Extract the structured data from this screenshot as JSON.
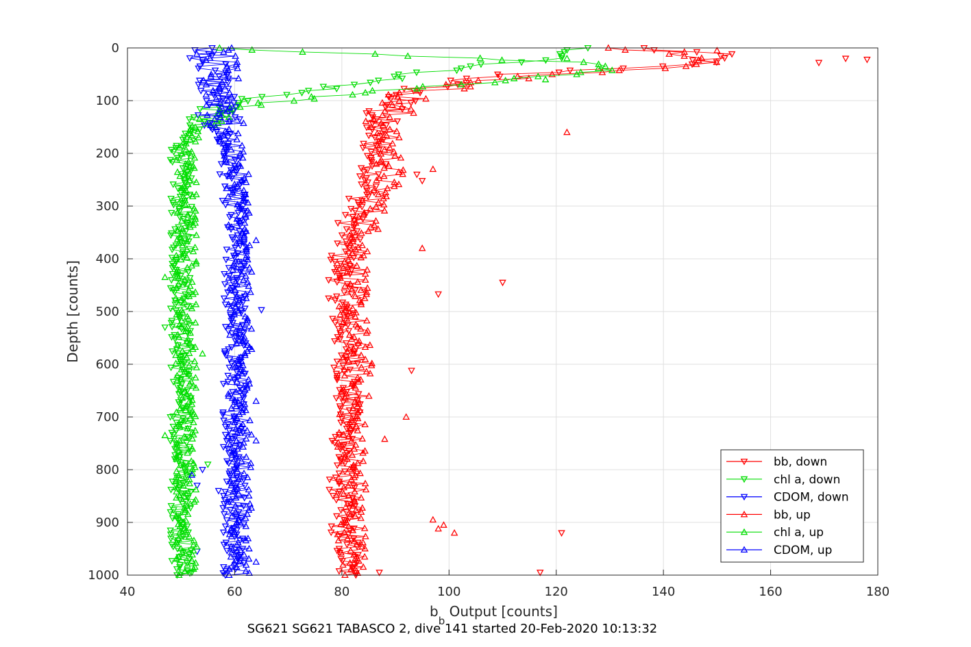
{
  "chart_data": {
    "type": "scatter",
    "title": "",
    "xlabel_main": "b",
    "xlabel_sub": "b",
    "xlabel_rest": " Output [counts]",
    "ylabel": "Depth [counts]",
    "caption": "SG621 SG621 TABASCO 2, dive 141 started 20-Feb-2020 10:13:32",
    "xlim": [
      40,
      180
    ],
    "ylim": [
      0,
      1000
    ],
    "y_reversed": true,
    "grid": true,
    "legend_position": "bottom-right",
    "xticks": [
      40,
      60,
      80,
      100,
      120,
      140,
      160,
      180
    ],
    "yticks": [
      0,
      100,
      200,
      300,
      400,
      500,
      600,
      700,
      800,
      900,
      1000
    ],
    "series": [
      {
        "name": "bb, down",
        "color": "#ff0000",
        "marker": "triangle-down",
        "profile": [
          [
            0,
            135
          ],
          [
            10,
            148
          ],
          [
            20,
            150
          ],
          [
            30,
            145
          ],
          [
            40,
            128
          ],
          [
            50,
            112
          ],
          [
            60,
            104
          ],
          [
            70,
            98
          ],
          [
            80,
            94
          ],
          [
            90,
            91
          ],
          [
            100,
            90
          ],
          [
            120,
            88
          ],
          [
            140,
            86
          ],
          [
            160,
            86
          ],
          [
            180,
            86
          ],
          [
            200,
            86
          ],
          [
            240,
            86
          ],
          [
            280,
            84
          ],
          [
            320,
            82
          ],
          [
            360,
            81
          ],
          [
            400,
            80
          ],
          [
            450,
            80
          ],
          [
            500,
            80
          ],
          [
            600,
            81
          ],
          [
            700,
            81
          ],
          [
            800,
            80
          ],
          [
            900,
            80
          ],
          [
            950,
            81
          ],
          [
            1000,
            81
          ]
        ],
        "spread": 2.5,
        "outliers": [
          [
            22,
            178
          ],
          [
            28,
            169
          ],
          [
            20,
            174
          ],
          [
            445,
            110
          ],
          [
            467,
            98
          ],
          [
            612,
            93
          ],
          [
            920,
            121
          ],
          [
            995,
            117
          ],
          [
            995,
            87
          ],
          [
            240,
            94
          ],
          [
            252,
            95
          ]
        ]
      },
      {
        "name": "chl a, down",
        "color": "#00dd00",
        "marker": "triangle-down",
        "profile": [
          [
            0,
            124
          ],
          [
            10,
            124
          ],
          [
            20,
            122
          ],
          [
            30,
            110
          ],
          [
            40,
            100
          ],
          [
            60,
            88
          ],
          [
            80,
            75
          ],
          [
            90,
            68
          ],
          [
            100,
            62
          ],
          [
            110,
            58
          ],
          [
            120,
            56
          ],
          [
            140,
            53
          ],
          [
            160,
            51
          ],
          [
            180,
            50
          ],
          [
            200,
            50
          ],
          [
            300,
            50
          ],
          [
            400,
            50
          ],
          [
            500,
            50
          ],
          [
            600,
            50
          ],
          [
            700,
            50
          ],
          [
            800,
            50
          ],
          [
            900,
            50
          ],
          [
            1000,
            50
          ]
        ],
        "spread": 2.0,
        "outliers": [
          [
            530,
            47
          ],
          [
            700,
            48
          ],
          [
            790,
            55
          ],
          [
            995,
            52
          ]
        ]
      },
      {
        "name": "CDOM, down",
        "color": "#0000ff",
        "marker": "triangle-down",
        "profile": [
          [
            0,
            55
          ],
          [
            50,
            56
          ],
          [
            100,
            57
          ],
          [
            150,
            57
          ],
          [
            200,
            59
          ],
          [
            300,
            60
          ],
          [
            400,
            60
          ],
          [
            500,
            60
          ],
          [
            600,
            60
          ],
          [
            700,
            60
          ],
          [
            800,
            60
          ],
          [
            900,
            60
          ],
          [
            1000,
            60
          ]
        ],
        "spread": 2.2,
        "outliers": [
          [
            497,
            65
          ],
          [
            800,
            54
          ],
          [
            830,
            53
          ],
          [
            955,
            53
          ],
          [
            840,
            57
          ]
        ]
      },
      {
        "name": "bb, up",
        "color": "#ff0000",
        "marker": "triangle-up",
        "profile": [
          [
            0,
            130
          ],
          [
            10,
            145
          ],
          [
            20,
            152
          ],
          [
            30,
            148
          ],
          [
            40,
            135
          ],
          [
            50,
            122
          ],
          [
            60,
            110
          ],
          [
            70,
            103
          ],
          [
            80,
            97
          ],
          [
            90,
            93
          ],
          [
            100,
            91
          ],
          [
            120,
            89
          ],
          [
            140,
            88
          ],
          [
            160,
            88
          ],
          [
            180,
            88
          ],
          [
            200,
            89
          ],
          [
            240,
            89
          ],
          [
            280,
            87
          ],
          [
            320,
            85
          ],
          [
            360,
            84
          ],
          [
            400,
            83
          ],
          [
            450,
            82
          ],
          [
            500,
            82
          ],
          [
            600,
            83
          ],
          [
            700,
            82
          ],
          [
            800,
            82
          ],
          [
            900,
            82
          ],
          [
            950,
            82
          ],
          [
            1000,
            82
          ]
        ],
        "spread": 2.8,
        "outliers": [
          [
            160,
            122
          ],
          [
            380,
            95
          ],
          [
            420,
            79
          ],
          [
            700,
            92
          ],
          [
            742,
            88
          ],
          [
            895,
            97
          ],
          [
            905,
            99
          ],
          [
            912,
            98
          ],
          [
            920,
            101
          ],
          [
            230,
            97
          ],
          [
            5,
            150
          ]
        ]
      },
      {
        "name": "chl a, up",
        "color": "#00dd00",
        "marker": "triangle-up",
        "profile": [
          [
            0,
            60
          ],
          [
            5,
            68
          ],
          [
            10,
            80
          ],
          [
            15,
            92
          ],
          [
            20,
            105
          ],
          [
            25,
            118
          ],
          [
            30,
            128
          ],
          [
            40,
            132
          ],
          [
            50,
            125
          ],
          [
            60,
            112
          ],
          [
            70,
            100
          ],
          [
            80,
            90
          ],
          [
            90,
            78
          ],
          [
            100,
            70
          ],
          [
            110,
            64
          ],
          [
            120,
            59
          ],
          [
            130,
            56
          ],
          [
            140,
            54
          ],
          [
            160,
            52
          ],
          [
            200,
            51
          ],
          [
            300,
            51
          ],
          [
            400,
            51
          ],
          [
            500,
            51
          ],
          [
            600,
            51
          ],
          [
            700,
            51
          ],
          [
            800,
            51
          ],
          [
            900,
            51
          ],
          [
            1000,
            51
          ]
        ],
        "spread": 2.0,
        "outliers": [
          [
            20,
            122
          ],
          [
            60,
            118
          ],
          [
            435,
            47
          ],
          [
            735,
            47
          ],
          [
            580,
            54
          ]
        ]
      },
      {
        "name": "CDOM, up",
        "color": "#0000ff",
        "marker": "triangle-up",
        "profile": [
          [
            0,
            56
          ],
          [
            50,
            57
          ],
          [
            100,
            58
          ],
          [
            150,
            58
          ],
          [
            200,
            60
          ],
          [
            300,
            61
          ],
          [
            400,
            61
          ],
          [
            500,
            61
          ],
          [
            600,
            61
          ],
          [
            700,
            61
          ],
          [
            800,
            61
          ],
          [
            900,
            61
          ],
          [
            1000,
            61
          ]
        ],
        "spread": 2.2,
        "outliers": [
          [
            365,
            64
          ],
          [
            670,
            64
          ],
          [
            745,
            64
          ],
          [
            975,
            64
          ],
          [
            810,
            52
          ]
        ]
      }
    ]
  }
}
